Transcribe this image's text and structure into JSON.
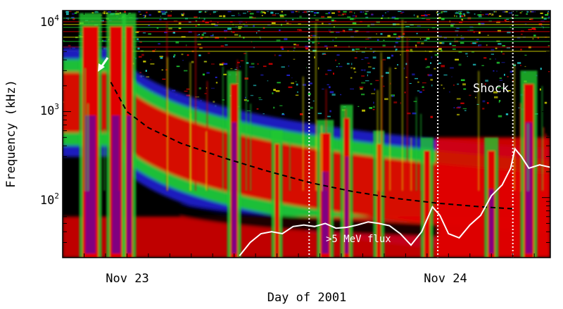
{
  "chart_data": {
    "type": "heatmap",
    "title": "",
    "xlabel": "Day of 2001",
    "ylabel": "Frequency (kHz)",
    "x_tick_labels": [
      "Nov 23",
      "Nov 24"
    ],
    "y_tick_labels": [
      {
        "base": "10",
        "exp": "2"
      },
      {
        "base": "10",
        "exp": "3"
      },
      {
        "base": "10",
        "exp": "4"
      }
    ],
    "y_scale": "log",
    "ylim_khz": [
      20,
      15000
    ],
    "xlim_hours_after_nov22_0000": [
      15.0,
      60.5
    ],
    "annotations": {
      "shock_label": "Shock",
      "flux_label": ">5 MeV flux"
    },
    "vertical_markers_hours_after_nov22_0000": [
      38.0,
      50.0,
      57.0
    ],
    "dashed_fit_curve": {
      "x_hours": [
        19.5,
        21,
        23,
        26,
        30,
        34,
        38,
        42,
        46,
        50,
        54,
        57
      ],
      "y_khz": [
        2200,
        1000,
        650,
        430,
        290,
        205,
        150,
        118,
        98,
        86,
        78,
        74
      ]
    },
    "flux_curve": {
      "x_hours": [
        31.5,
        32.5,
        33.5,
        34.5,
        35.5,
        36.5,
        37.5,
        38.5,
        39.5,
        40.5,
        41.5,
        42.5,
        43.5,
        44.5,
        45.5,
        46.5,
        47.5,
        48.5,
        49.5,
        50.2,
        51.0,
        52.0,
        53.0,
        54.0,
        55.0,
        56.0,
        56.8,
        57.2,
        57.8,
        58.5,
        59.5,
        60.5
      ],
      "y_khz": [
        21,
        30,
        38,
        40,
        38,
        46,
        48,
        46,
        50,
        44,
        45,
        48,
        52,
        50,
        47,
        38,
        28,
        40,
        78,
        62,
        38,
        34,
        48,
        62,
        105,
        140,
        220,
        370,
        300,
        220,
        240,
        225
      ]
    },
    "colors": {
      "background_noise": "#000000",
      "low_intensity": "#2020c8",
      "mid_intensity": "#20c830",
      "high_intensity": "#e00000",
      "saturated": "#800080",
      "fit_curve": "#000000",
      "flux_curve": "#ffffff"
    }
  }
}
